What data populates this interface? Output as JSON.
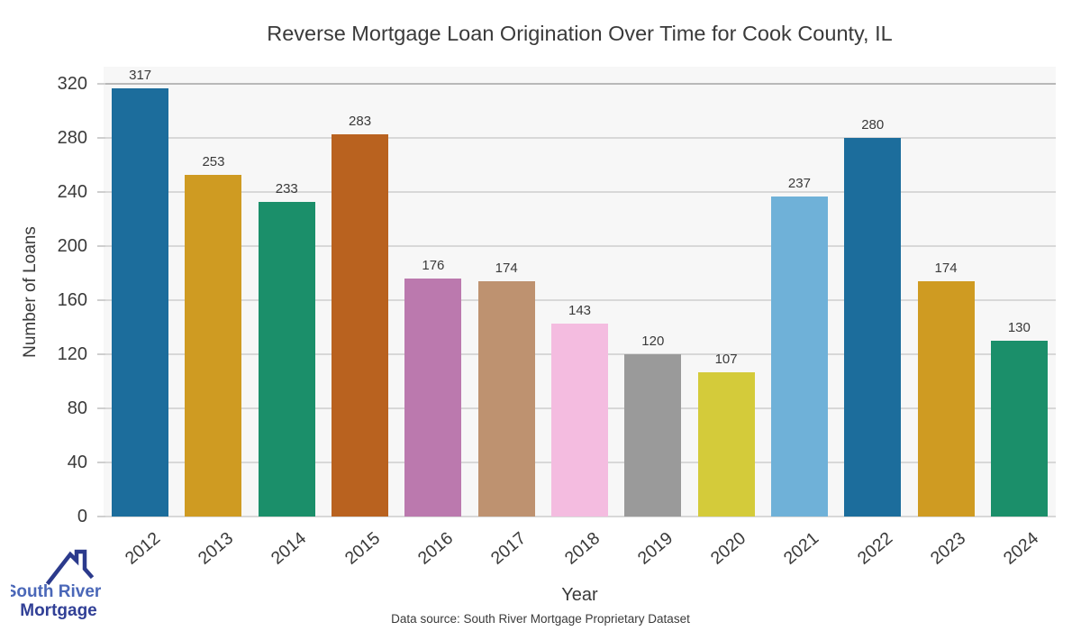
{
  "chart_data": {
    "type": "bar",
    "title": "Reverse Mortgage Loan Origination Over Time for Cook County, IL",
    "categories": [
      "2012",
      "2013",
      "2014",
      "2015",
      "2016",
      "2017",
      "2018",
      "2019",
      "2020",
      "2021",
      "2022",
      "2023",
      "2024"
    ],
    "values": [
      317,
      253,
      233,
      283,
      176,
      174,
      143,
      120,
      107,
      237,
      280,
      174,
      130
    ],
    "bar_colors": [
      "#1c6d9c",
      "#cf9b22",
      "#1b8f6a",
      "#b9621f",
      "#bb79ae",
      "#be9270",
      "#f4bce0",
      "#9a9a9a",
      "#d4cb3a",
      "#6fb1d8",
      "#1c6d9c",
      "#cf9b22",
      "#1b8f6a"
    ],
    "xlabel": "Year",
    "ylabel": "Number of Loans",
    "yticks": [
      0,
      40,
      80,
      120,
      160,
      200,
      240,
      280,
      320
    ],
    "ylim": [
      0,
      333
    ],
    "grid": true,
    "legend": false,
    "plot_bg": "#f7f7f7",
    "gridline_color": "#d8d8d8",
    "top_gridline_color": "#b9b9b9",
    "text_color": "#3a3a3a"
  },
  "footer": {
    "source_note": "Data source: South River Mortgage Proprietary Dataset"
  },
  "logo": {
    "line1": "South River",
    "line2": "Mortgage",
    "icon": "house-roof-icon",
    "roof_color": "#2b3a8c",
    "line1_color": "#4a67b8",
    "line2_color": "#303f96"
  }
}
